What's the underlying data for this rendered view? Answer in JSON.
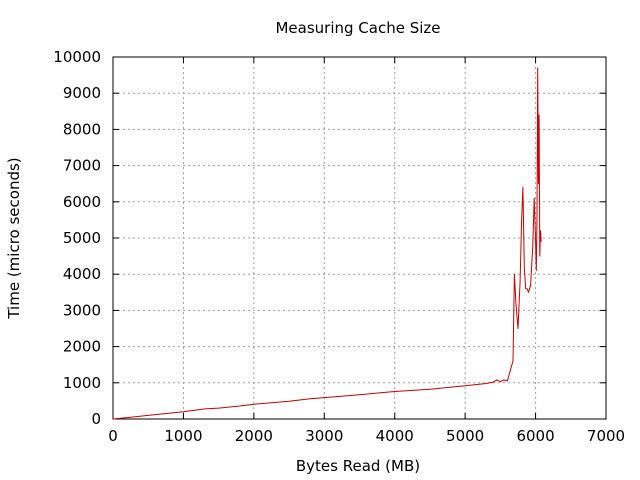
{
  "chart_data": {
    "type": "line",
    "title": "Measuring Cache Size",
    "xlabel": "Bytes Read (MB)",
    "ylabel": "Time (micro seconds)",
    "xlim": [
      0,
      7000
    ],
    "ylim": [
      0,
      10000
    ],
    "xticks": [
      0,
      1000,
      2000,
      3000,
      4000,
      5000,
      6000,
      7000
    ],
    "yticks": [
      0,
      1000,
      2000,
      3000,
      4000,
      5000,
      6000,
      7000,
      8000,
      9000,
      10000
    ],
    "grid": true,
    "series": [
      {
        "color": "#cc0000",
        "x": [
          0,
          500,
          1000,
          1200,
          1300,
          1500,
          1800,
          2000,
          2500,
          2800,
          3000,
          3500,
          4000,
          4500,
          5000,
          5300,
          5400,
          5450,
          5500,
          5550,
          5600,
          5650,
          5680,
          5700,
          5720,
          5750,
          5780,
          5800,
          5820,
          5840,
          5860,
          5880,
          5900,
          5930,
          5960,
          5980,
          6000,
          6010,
          6020,
          6030,
          6040,
          6050,
          6060,
          6070,
          6080
        ],
        "y": [
          0,
          100,
          200,
          250,
          280,
          300,
          360,
          410,
          490,
          560,
          590,
          670,
          760,
          820,
          920,
          980,
          1020,
          1080,
          1030,
          1080,
          1050,
          1400,
          1600,
          4000,
          3200,
          2500,
          3800,
          5400,
          6400,
          4200,
          3600,
          3600,
          3500,
          3700,
          4800,
          6100,
          4900,
          4100,
          5600,
          9700,
          6500,
          8400,
          4500,
          5200,
          4900
        ]
      }
    ]
  }
}
